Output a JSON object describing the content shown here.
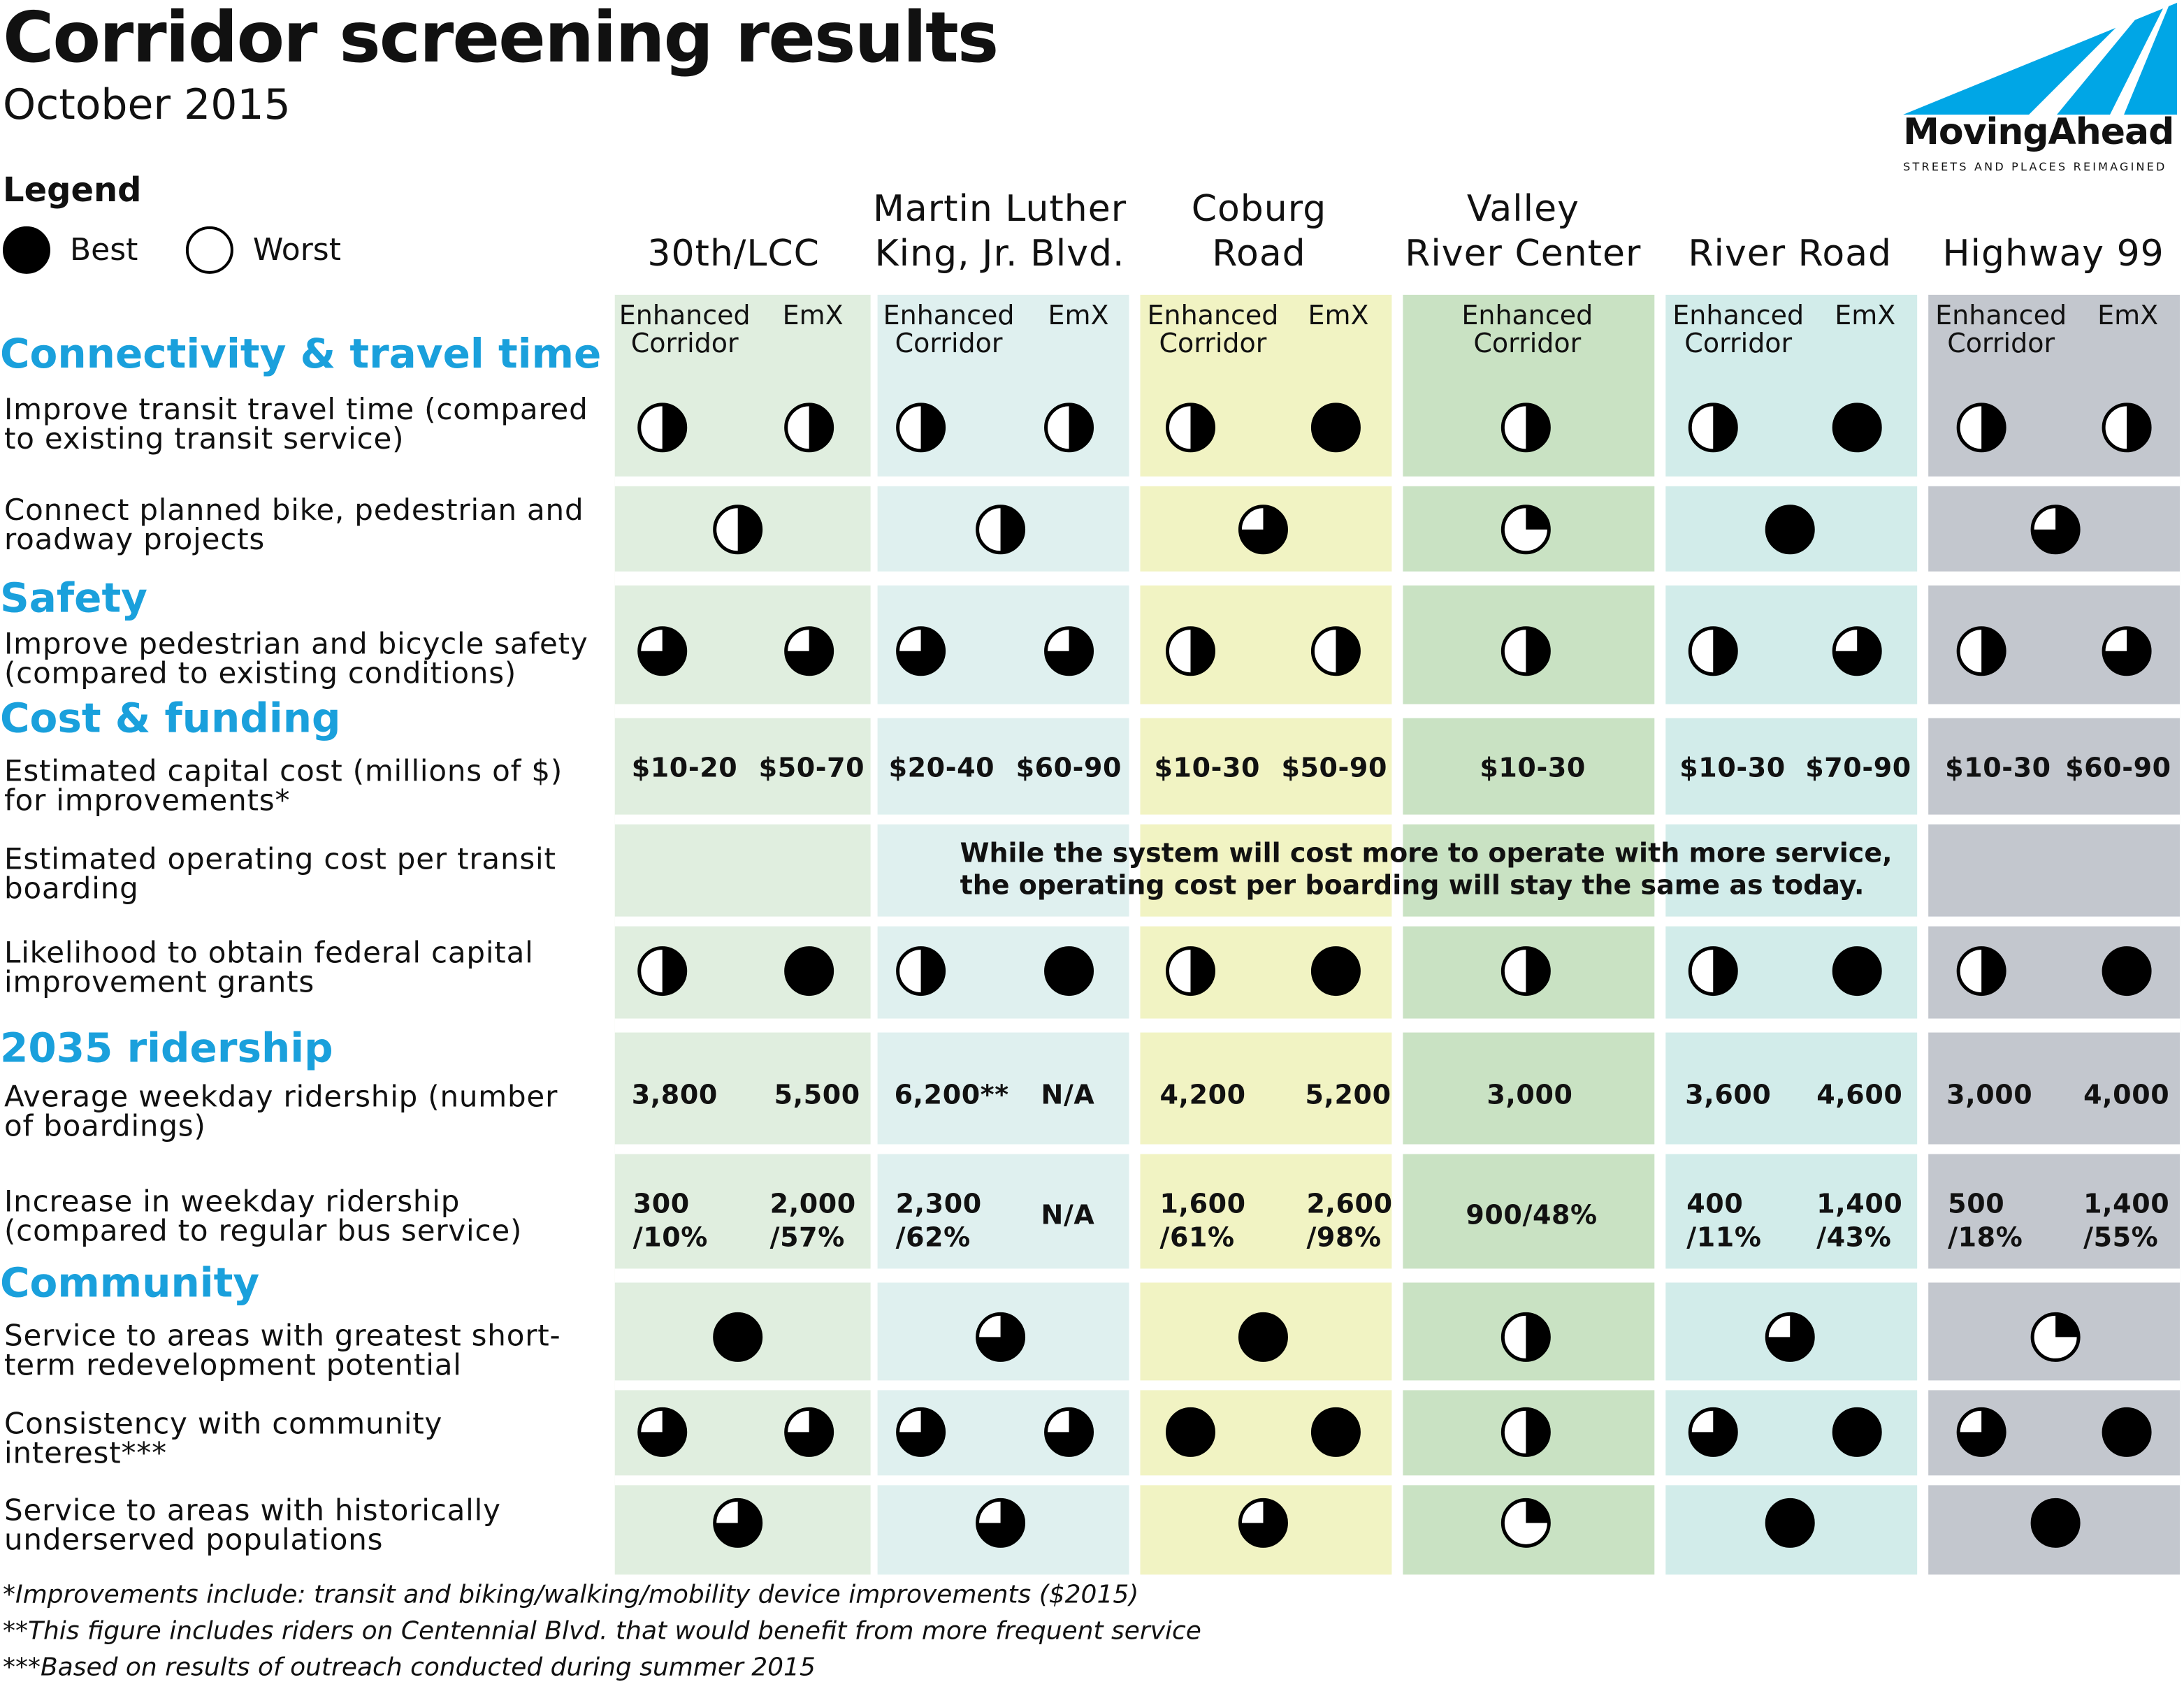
{
  "header": {
    "title": "Corridor screening results",
    "subtitle": "October 2015"
  },
  "legend": {
    "title": "Legend",
    "best": "Best",
    "worst": "Worst"
  },
  "logo": {
    "wordmark": "MovingAhead",
    "tagline": "STREETS AND PLACES REIMAGINED",
    "accent": "#00a6e6"
  },
  "colors": {
    "section_heading": "#1aa0dc",
    "col_30th": "#e0eedf",
    "col_mlk": "#dff0ef",
    "col_coburg": "#f1f3c3",
    "col_valley": "#c9e2c3",
    "col_river": "#d2ecea",
    "col_hwy": "#c3c7ce"
  },
  "corridors": [
    {
      "name_line1": "30th/LCC",
      "name_line2": "",
      "sub_a": "Enhanced Corridor",
      "sub_b": "EmX"
    },
    {
      "name_line1": "Martin Luther",
      "name_line2": "King, Jr. Blvd.",
      "sub_a": "Enhanced Corridor",
      "sub_b": "EmX"
    },
    {
      "name_line1": "Coburg",
      "name_line2": "Road",
      "sub_a": "Enhanced Corridor",
      "sub_b": "EmX"
    },
    {
      "name_line1": "Valley",
      "name_line2": "River Center",
      "sub_a": "Enhanced Corridor",
      "sub_b": ""
    },
    {
      "name_line1": "River Road",
      "name_line2": "",
      "sub_a": "Enhanced Corridor",
      "sub_b": "EmX"
    },
    {
      "name_line1": "Highway 99",
      "name_line2": "",
      "sub_a": "Enhanced Corridor",
      "sub_b": "EmX"
    }
  ],
  "sections": {
    "connectivity": "Connectivity & travel time",
    "safety": "Safety",
    "cost": "Cost & funding",
    "ridership": "2035 ridership",
    "community": "Community"
  },
  "criteria": {
    "travel_time": "Improve transit travel time (compared to existing transit service)",
    "connect_projects": "Connect planned bike, pedestrian and roadway projects",
    "ped_bike_safety": "Improve pedestrian and bicycle safety (compared to existing conditions)",
    "capital_cost": "Estimated capital cost (millions of $) for improvements*",
    "operating_cost": "Estimated operating cost per transit boarding",
    "federal_grants": "Likelihood to obtain federal capital improvement grants",
    "weekday_ridership": "Average weekday ridership (number of boardings)",
    "ridership_increase": "Increase in weekday ridership (compared to regular bus service)",
    "redevelopment": "Service to areas with greatest short-term redevelopment potential",
    "community_interest": "Consistency with community interest***",
    "underserved": "Service to areas with historically underserved populations"
  },
  "ratings_scale": "fraction of circle filled black: 1 = Best, 0 = Worst",
  "ratings": {
    "travel_time": [
      0.5,
      0.5,
      0.5,
      0.5,
      0.5,
      1,
      0.5,
      0.5,
      1,
      0.5,
      0.5
    ],
    "connect_projects": [
      0.5,
      0.5,
      0.75,
      0.25,
      1,
      0.75
    ],
    "ped_bike_safety": [
      0.75,
      0.75,
      0.75,
      0.75,
      0.5,
      0.5,
      0.5,
      0.5,
      0.75,
      0.5,
      0.75
    ],
    "federal_grants": [
      0.5,
      1,
      0.5,
      1,
      0.5,
      1,
      0.5,
      0.5,
      1,
      0.5,
      1
    ],
    "redevelopment": [
      1,
      0.75,
      1,
      0.5,
      0.75,
      0.25
    ],
    "community_interest": [
      0.75,
      0.75,
      0.75,
      0.75,
      1,
      1,
      0.5,
      0.75,
      1,
      0.75,
      1
    ],
    "underserved": [
      0.75,
      0.75,
      0.75,
      0.25,
      1,
      1
    ]
  },
  "capital_cost": [
    "$10-20",
    "$50-70",
    "$20-40",
    "$60-90",
    "$10-30",
    "$50-90",
    "$10-30",
    "$10-30",
    "$70-90",
    "$10-30",
    "$60-90"
  ],
  "operating_note_line1": "While the system will cost more to operate with more service,",
  "operating_note_line2": "the operating cost per boarding will stay the same as today.",
  "weekday_ridership": [
    "3,800",
    "5,500",
    "6,200**",
    "N/A",
    "4,200",
    "5,200",
    "3,000",
    "3,600",
    "4,600",
    "3,000",
    "4,000"
  ],
  "ridership_increase": [
    {
      "a": "300",
      "b": "/10%"
    },
    {
      "a": "2,000",
      "b": "/57%"
    },
    {
      "a": "2,300",
      "b": "/62%"
    },
    {
      "a": "N/A",
      "b": ""
    },
    {
      "a": "1,600",
      "b": "/61%"
    },
    {
      "a": "2,600",
      "b": "/98%"
    },
    {
      "a": "900/48%",
      "b": ""
    },
    {
      "a": "400",
      "b": "/11%"
    },
    {
      "a": "1,400",
      "b": "/43%"
    },
    {
      "a": "500",
      "b": "/18%"
    },
    {
      "a": "1,400",
      "b": "/55%"
    }
  ],
  "footnotes": {
    "f1": "*Improvements include: transit and biking/walking/mobility device improvements ($2015)",
    "f2": "**This figure includes riders on Centennial Blvd. that would benefit from more frequent service",
    "f3": "***Based on results of outreach conducted during summer 2015"
  }
}
